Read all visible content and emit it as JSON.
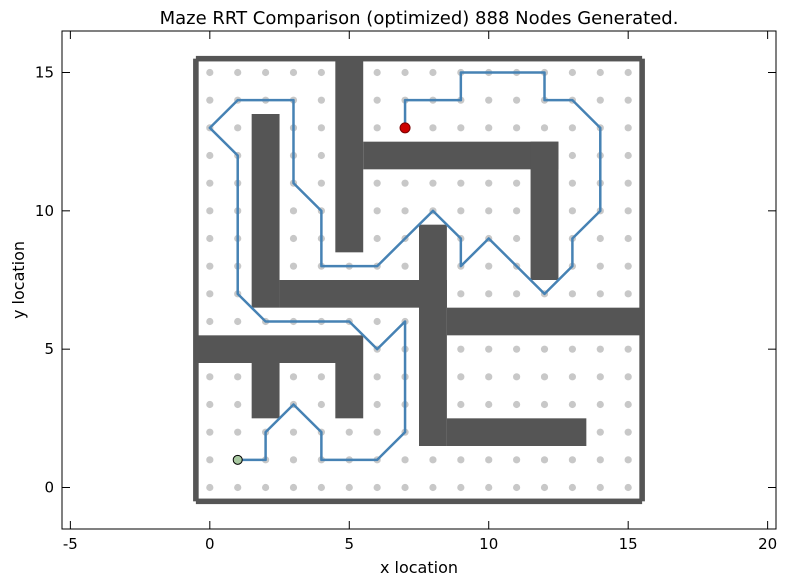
{
  "chart_data": {
    "type": "scatter",
    "title": "Maze RRT Comparison (optimized) 888 Nodes Generated.",
    "xlabel": "x location",
    "ylabel": "y location",
    "xlim": [
      -5.3,
      20.3
    ],
    "ylim": [
      -1.5,
      16.5
    ],
    "xticks": [
      -5,
      0,
      5,
      10,
      15,
      20
    ],
    "yticks": [
      0,
      5,
      10,
      15
    ],
    "grid": false,
    "colors": {
      "wall": "#555555",
      "node": "#c8c8c8",
      "path": "#4682b4",
      "goal": "#cc0000",
      "start": "#a8c8a0"
    },
    "node_grid": {
      "x_range": [
        0,
        15
      ],
      "y_range": [
        0,
        15
      ],
      "step": 1
    },
    "walls": [
      {
        "x0": -0.5,
        "y0": -0.6,
        "x1": 15.5,
        "y1": -0.4
      },
      {
        "x0": -0.5,
        "y0": 15.4,
        "x1": 15.5,
        "y1": 15.6
      },
      {
        "x0": -0.6,
        "y0": -0.5,
        "x1": -0.4,
        "y1": 15.5
      },
      {
        "x0": 15.4,
        "y0": -0.5,
        "x1": 15.6,
        "y1": 15.5
      },
      {
        "x0": 4.5,
        "y0": 8.5,
        "x1": 5.5,
        "y1": 15.5
      },
      {
        "x0": 5.5,
        "y0": 11.5,
        "x1": 12.5,
        "y1": 12.5
      },
      {
        "x0": 11.5,
        "y0": 7.5,
        "x1": 12.5,
        "y1": 12.5
      },
      {
        "x0": 1.5,
        "y0": 6.5,
        "x1": 2.5,
        "y1": 13.5
      },
      {
        "x0": 2.5,
        "y0": 6.5,
        "x1": 8.5,
        "y1": 7.5
      },
      {
        "x0": 7.5,
        "y0": 1.5,
        "x1": 8.5,
        "y1": 9.5
      },
      {
        "x0": 8.5,
        "y0": 5.5,
        "x1": 15.5,
        "y1": 6.5
      },
      {
        "x0": 8.5,
        "y0": 1.5,
        "x1": 13.5,
        "y1": 2.5
      },
      {
        "x0": -0.5,
        "y0": 4.5,
        "x1": 5.5,
        "y1": 5.5
      },
      {
        "x0": 1.5,
        "y0": 2.5,
        "x1": 2.5,
        "y1": 4.5
      },
      {
        "x0": 4.5,
        "y0": 2.5,
        "x1": 5.5,
        "y1": 4.5
      }
    ],
    "path": [
      {
        "x": 1,
        "y": 1
      },
      {
        "x": 2,
        "y": 1
      },
      {
        "x": 2,
        "y": 2
      },
      {
        "x": 3,
        "y": 3
      },
      {
        "x": 4,
        "y": 2
      },
      {
        "x": 4,
        "y": 1
      },
      {
        "x": 6,
        "y": 1
      },
      {
        "x": 7,
        "y": 2
      },
      {
        "x": 7,
        "y": 6
      },
      {
        "x": 6,
        "y": 5
      },
      {
        "x": 5,
        "y": 6
      },
      {
        "x": 2,
        "y": 6
      },
      {
        "x": 1,
        "y": 7
      },
      {
        "x": 1,
        "y": 12
      },
      {
        "x": 0,
        "y": 13
      },
      {
        "x": 1,
        "y": 14
      },
      {
        "x": 3,
        "y": 14
      },
      {
        "x": 3,
        "y": 11
      },
      {
        "x": 4,
        "y": 10
      },
      {
        "x": 4,
        "y": 8
      },
      {
        "x": 6,
        "y": 8
      },
      {
        "x": 7,
        "y": 9
      },
      {
        "x": 8,
        "y": 10
      },
      {
        "x": 9,
        "y": 9
      },
      {
        "x": 9,
        "y": 8
      },
      {
        "x": 10,
        "y": 9
      },
      {
        "x": 12,
        "y": 7
      },
      {
        "x": 13,
        "y": 8
      },
      {
        "x": 13,
        "y": 9
      },
      {
        "x": 14,
        "y": 10
      },
      {
        "x": 14,
        "y": 13
      },
      {
        "x": 13,
        "y": 14
      },
      {
        "x": 12,
        "y": 14
      },
      {
        "x": 12,
        "y": 15
      },
      {
        "x": 9,
        "y": 15
      },
      {
        "x": 9,
        "y": 14
      },
      {
        "x": 7,
        "y": 14
      },
      {
        "x": 7,
        "y": 13
      }
    ],
    "start": {
      "x": 1,
      "y": 1
    },
    "goal": {
      "x": 7,
      "y": 13
    }
  }
}
